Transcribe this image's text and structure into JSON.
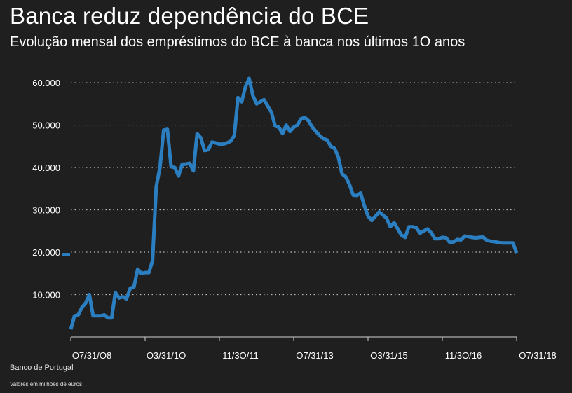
{
  "header": {
    "title": "Banca reduz dependência do BCE",
    "subtitle": "Evolução mensal dos empréstimos do BCE à banca nos últimos 1O anos"
  },
  "footer": {
    "source": "Banco de Portugal",
    "note": "Valores em milhões de euros"
  },
  "colors": {
    "background": "#1f1f1f",
    "line": "#2b7fc1",
    "grid": "#bdbdbd",
    "text": "#ffffff"
  },
  "chart_data": {
    "type": "line",
    "title": "Banca reduz dependência do BCE",
    "subtitle": "Evolução mensal dos empréstimos do BCE à banca nos últimos 1O anos",
    "xlabel": "",
    "ylabel": "",
    "ylim": [
      0,
      62000
    ],
    "xlim": [
      "2008-07",
      "2018-07"
    ],
    "yticks": [
      10000,
      20000,
      30000,
      40000,
      50000,
      60000
    ],
    "ytick_labels": [
      "10.000",
      "20.000",
      "30.000",
      "40.000",
      "50.000",
      "60.000"
    ],
    "xtick_labels": [
      {
        "x": "2008-07",
        "label": "O7/31/O8"
      },
      {
        "x": "2010-03",
        "label": "O3/31/1O"
      },
      {
        "x": "2011-11",
        "label": "11/3O/11"
      },
      {
        "x": "2013-07",
        "label": "O7/31/13"
      },
      {
        "x": "2015-03",
        "label": "O3/31/15"
      },
      {
        "x": "2016-11",
        "label": "11/3O/16"
      },
      {
        "x": "2018-07",
        "label": "O7/31/18"
      }
    ],
    "grid": true,
    "legend": "none",
    "series": [
      {
        "x": [
          "2008-07",
          "2008-08",
          "2008-09",
          "2008-10",
          "2008-11",
          "2008-12",
          "2009-01",
          "2009-02",
          "2009-03",
          "2009-04",
          "2009-05",
          "2009-06",
          "2009-07",
          "2009-08",
          "2009-09",
          "2009-10",
          "2009-11",
          "2009-12",
          "2010-01",
          "2010-02",
          "2010-03",
          "2010-04",
          "2010-05",
          "2010-06",
          "2010-07",
          "2010-08",
          "2010-09",
          "2010-10",
          "2010-11",
          "2010-12",
          "2011-01",
          "2011-02",
          "2011-03",
          "2011-04",
          "2011-05",
          "2011-06",
          "2011-07",
          "2011-08",
          "2011-09",
          "2011-10",
          "2011-11",
          "2011-12",
          "2012-01",
          "2012-02",
          "2012-03",
          "2012-04",
          "2012-05",
          "2012-06",
          "2012-07",
          "2012-08",
          "2012-09",
          "2012-10",
          "2012-11",
          "2012-12",
          "2013-01",
          "2013-02",
          "2013-03",
          "2013-04",
          "2013-05",
          "2013-06",
          "2013-07",
          "2013-08",
          "2013-09",
          "2013-10",
          "2013-11",
          "2013-12",
          "2014-01",
          "2014-02",
          "2014-03",
          "2014-04",
          "2014-05",
          "2014-06",
          "2014-07",
          "2014-08",
          "2014-09",
          "2014-10",
          "2014-11",
          "2014-12",
          "2015-01",
          "2015-02",
          "2015-03",
          "2015-04",
          "2015-05",
          "2015-06",
          "2015-07",
          "2015-08",
          "2015-09",
          "2015-10",
          "2015-11",
          "2015-12",
          "2016-01",
          "2016-02",
          "2016-03",
          "2016-04",
          "2016-05",
          "2016-06",
          "2016-07",
          "2016-08",
          "2016-09",
          "2016-10",
          "2016-11",
          "2016-12",
          "2017-01",
          "2017-02",
          "2017-03",
          "2017-04",
          "2017-05",
          "2017-06",
          "2017-07",
          "2017-08",
          "2017-09",
          "2017-10",
          "2017-11",
          "2017-12",
          "2018-01",
          "2018-02",
          "2018-03",
          "2018-04",
          "2018-05",
          "2018-06",
          "2018-07"
        ],
        "values": [
          1800,
          5000,
          5200,
          7000,
          8000,
          10000,
          5000,
          5000,
          5000,
          5200,
          4500,
          4500,
          10500,
          9200,
          9500,
          9000,
          11500,
          11800,
          16000,
          15000,
          15200,
          15200,
          18000,
          35500,
          40000,
          48800,
          49000,
          40200,
          40000,
          38000,
          40800,
          40800,
          41000,
          39200,
          48000,
          47000,
          44000,
          44200,
          46000,
          45800,
          45500,
          45500,
          45800,
          46200,
          47500,
          56500,
          55500,
          59000,
          61000,
          57000,
          55000,
          55500,
          56000,
          54500,
          53000,
          49800,
          49500,
          48000,
          50000,
          48500,
          49500,
          50000,
          51500,
          51800,
          51000,
          49500,
          48500,
          47500,
          46800,
          46500,
          45000,
          44500,
          42500,
          38500,
          37800,
          36000,
          33500,
          33400,
          34000,
          31000,
          28500,
          27500,
          28500,
          29500,
          28800,
          28000,
          26000,
          27000,
          25500,
          24000,
          23500,
          26000,
          26000,
          25800,
          24500,
          25000,
          25500,
          24600,
          23200,
          23200,
          23500,
          23400,
          22300,
          22400,
          23000,
          22900,
          23800,
          23700,
          23500,
          23400,
          23500,
          23600,
          22800,
          22600,
          22500,
          22300,
          22200,
          22200,
          22200,
          22200,
          19800
        ]
      }
    ],
    "annotations": [
      {
        "x": "2008-07",
        "y": 19500,
        "label": ""
      }
    ]
  }
}
